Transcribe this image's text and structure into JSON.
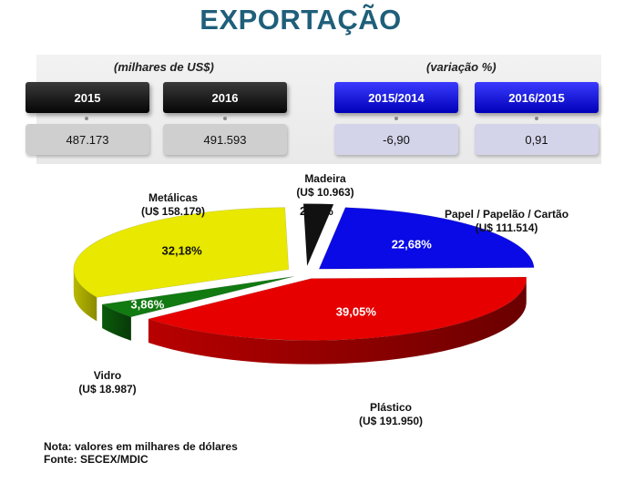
{
  "title": "EXPORTAÇÃO",
  "summary": {
    "values_label": "(milhares de US$)",
    "variation_label": "(variação %)",
    "cards": [
      {
        "header": "2015",
        "value": "487.173"
      },
      {
        "header": "2016",
        "value": "491.593"
      },
      {
        "header": "2015/2014",
        "value": "-6,90"
      },
      {
        "header": "2016/2015",
        "value": "0,91"
      }
    ]
  },
  "chart_data": {
    "type": "pie",
    "title": "",
    "slices": [
      {
        "name": "Madeira",
        "value_label": "(U$ 10.963)",
        "value": 10963,
        "percent": 2.23,
        "percent_label": "2,23%",
        "color": "#111111"
      },
      {
        "name": "Papel / Papelão / Cartão",
        "value_label": "(U$ 111.514)",
        "value": 111514,
        "percent": 22.68,
        "percent_label": "22,68%",
        "color": "#0a0ae6"
      },
      {
        "name": "Plástico",
        "value_label": "(U$ 191.950)",
        "value": 191950,
        "percent": 39.05,
        "percent_label": "39,05%",
        "color": "#e60000"
      },
      {
        "name": "Vidro",
        "value_label": "(U$ 18.987)",
        "value": 18987,
        "percent": 3.86,
        "percent_label": "3,86%",
        "color": "#117a11"
      },
      {
        "name": "Metálicas",
        "value_label": "(U$ 158.179)",
        "value": 158179,
        "percent": 32.18,
        "percent_label": "32,18%",
        "color": "#e8e800"
      }
    ]
  },
  "notes": {
    "line1": "Nota: valores em milhares de dólares",
    "line2": "Fonte: SECEX/MDIC"
  }
}
